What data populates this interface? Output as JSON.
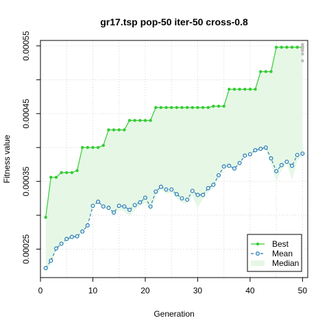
{
  "chart_data": {
    "type": "line",
    "title": "gr17.tsp pop-50 iter-50 cross-0.8",
    "xlabel": "Generation",
    "ylabel": "Fitness value",
    "xlim": [
      0,
      51
    ],
    "ylim": [
      0.000208,
      0.000558
    ],
    "xticks": [
      0,
      10,
      20,
      30,
      40,
      50
    ],
    "yticks": [
      0.00025,
      0.00035,
      0.00045,
      0.00055
    ],
    "ytick_labels": [
      "0.00025",
      "0.00035",
      "0.00045",
      "0.00055"
    ],
    "grid": true,
    "legend_position": "bottom-right",
    "colors": {
      "best": "#33cc33",
      "mean": "#1f78b4",
      "median_fill": "#e6f7e6",
      "last_gen_points": "#bebebe"
    },
    "x": [
      1,
      2,
      3,
      4,
      5,
      6,
      7,
      8,
      9,
      10,
      11,
      12,
      13,
      14,
      15,
      16,
      17,
      18,
      19,
      20,
      21,
      22,
      23,
      24,
      25,
      26,
      27,
      28,
      29,
      30,
      31,
      32,
      33,
      34,
      35,
      36,
      37,
      38,
      39,
      40,
      41,
      42,
      43,
      44,
      45,
      46,
      47,
      48,
      49,
      50
    ],
    "series": [
      {
        "name": "Best",
        "values": [
          0.000297,
          0.000356,
          0.000356,
          0.000363,
          0.000363,
          0.000363,
          0.000366,
          0.0004,
          0.0004,
          0.0004,
          0.0004,
          0.000403,
          0.000426,
          0.000426,
          0.000426,
          0.000426,
          0.00044,
          0.00044,
          0.00044,
          0.00044,
          0.00044,
          0.000459,
          0.000459,
          0.000459,
          0.000459,
          0.000459,
          0.000459,
          0.000459,
          0.000459,
          0.000459,
          0.000459,
          0.000459,
          0.000461,
          0.000461,
          0.000461,
          0.000486,
          0.000486,
          0.000486,
          0.000486,
          0.000486,
          0.000486,
          0.000512,
          0.000512,
          0.000512,
          0.000548,
          0.000548,
          0.000548,
          0.000548,
          0.000548,
          0.000548
        ]
      },
      {
        "name": "Mean",
        "values": [
          0.000222,
          0.000233,
          0.000251,
          0.000258,
          0.000265,
          0.000268,
          0.000269,
          0.000276,
          0.000285,
          0.000314,
          0.00032,
          0.000313,
          0.000311,
          0.000304,
          0.000314,
          0.000313,
          0.000308,
          0.000315,
          0.000319,
          0.000326,
          0.000313,
          0.000335,
          0.000342,
          0.000338,
          0.000338,
          0.000331,
          0.000325,
          0.000323,
          0.000336,
          0.00033,
          0.00033,
          0.00034,
          0.000345,
          0.000359,
          0.000372,
          0.000373,
          0.000369,
          0.000377,
          0.000388,
          0.00039,
          0.000396,
          0.000398,
          0.0004,
          0.000384,
          0.000365,
          0.000374,
          0.000379,
          0.000373,
          0.000389,
          0.000391
        ]
      },
      {
        "name": "Median",
        "values": [
          0.000215,
          0.000228,
          0.000248,
          0.000255,
          0.000262,
          0.000265,
          0.000266,
          0.000274,
          0.000284,
          0.00031,
          0.000318,
          0.000312,
          0.000308,
          0.000302,
          0.000308,
          0.000306,
          0.000298,
          0.000308,
          0.000314,
          0.000318,
          0.000306,
          0.000328,
          0.000338,
          0.000332,
          0.000333,
          0.000325,
          0.000318,
          0.000318,
          0.000328,
          0.000311,
          0.000324,
          0.000334,
          0.00034,
          0.000354,
          0.000368,
          0.000372,
          0.000365,
          0.000374,
          0.000386,
          0.000388,
          0.000394,
          0.000396,
          0.000397,
          0.000376,
          0.00035,
          0.000367,
          0.000376,
          0.000352,
          0.00038,
          0.000388
        ]
      }
    ],
    "last_generation_points": [
      0.000552,
      0.000549,
      0.000546,
      0.000543,
      0.000538,
      0.000528
    ]
  }
}
